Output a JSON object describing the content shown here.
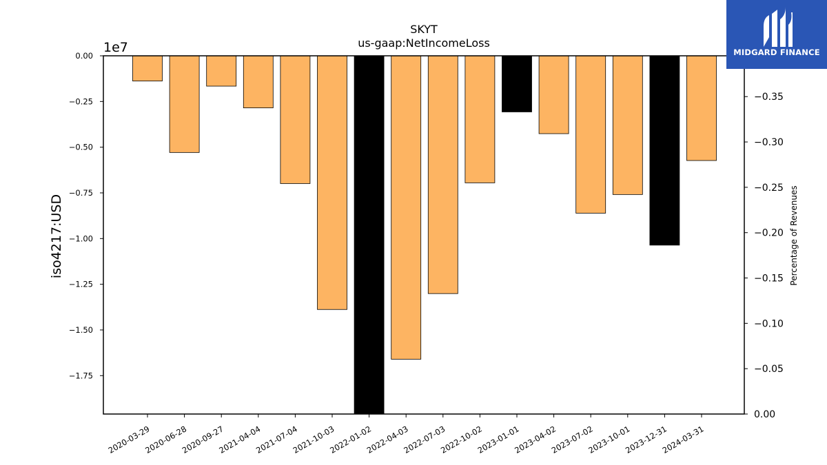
{
  "chart_data": {
    "type": "bar",
    "title": "SKYT",
    "subtitle": "us-gaap:NetIncomeLoss",
    "ylabel": "iso4217:USD",
    "y_offset_label": "1e7",
    "y2label": "Percentage of Revenues",
    "categories": [
      "2020-03-29",
      "2020-06-28",
      "2020-09-27",
      "2021-04-04",
      "2021-07-04",
      "2021-10-03",
      "2022-01-02",
      "2022-04-03",
      "2022-07-03",
      "2022-10-02",
      "2023-01-01",
      "2023-04-02",
      "2023-07-02",
      "2023-10-01",
      "2023-12-31",
      "2024-03-31"
    ],
    "values": [
      -1380000,
      -5290000,
      -1660000,
      -2850000,
      -6990000,
      -13880000,
      -19600000,
      -16600000,
      -13010000,
      -6950000,
      -3070000,
      -4260000,
      -8610000,
      -7590000,
      -10360000,
      -5730000
    ],
    "bar_colors": [
      "#fdb462",
      "#fdb462",
      "#fdb462",
      "#fdb462",
      "#fdb462",
      "#fdb462",
      "#000000",
      "#fdb462",
      "#fdb462",
      "#fdb462",
      "#000000",
      "#fdb462",
      "#fdb462",
      "#fdb462",
      "#000000",
      "#fdb462"
    ],
    "ylim": [
      -19600000,
      0
    ],
    "yticks": [
      0,
      -2500000,
      -5000000,
      -7500000,
      -10000000,
      -12500000,
      -15000000,
      -17500000
    ],
    "ytick_labels": [
      "0.00",
      "−0.25",
      "−0.50",
      "−0.75",
      "−1.00",
      "−1.25",
      "−1.50",
      "−1.75"
    ],
    "y2lim": [
      0.0,
      -0.395
    ],
    "y2ticks": [
      0.0,
      -0.05,
      -0.1,
      -0.15,
      -0.2,
      -0.25,
      -0.3,
      -0.35
    ],
    "y2tick_labels": [
      "0.00",
      "−0.05",
      "−0.10",
      "−0.15",
      "−0.20",
      "−0.25",
      "−0.30",
      "−0.35"
    ],
    "grid": false
  },
  "logo": {
    "text": "MIDGARD FINANCE"
  }
}
